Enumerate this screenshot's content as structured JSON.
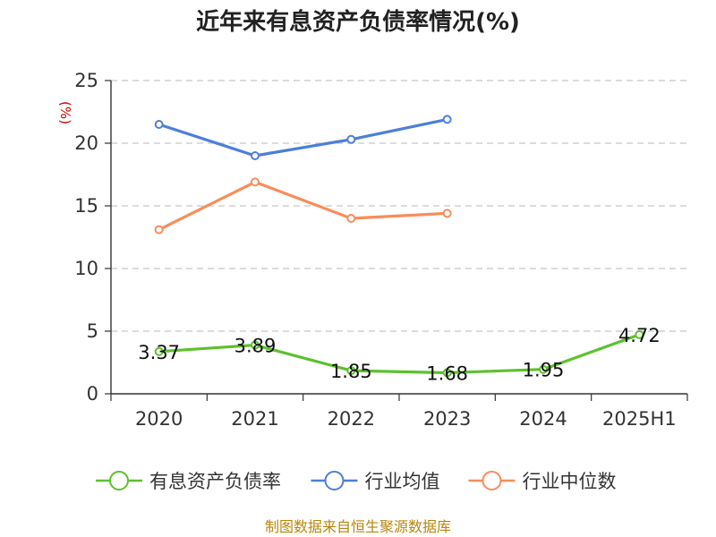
{
  "chart_data": {
    "type": "line",
    "title": "近年来有息资产负债率情况(%)",
    "unit_label": "(%)",
    "categories": [
      "2020",
      "2021",
      "2022",
      "2023",
      "2024",
      "2025H1"
    ],
    "y_ticks": [
      "0",
      "5",
      "10",
      "15",
      "20",
      "25"
    ],
    "ylim": [
      0,
      25
    ],
    "grid": true,
    "legend_position": "bottom",
    "series": [
      {
        "name": "有息资产负债率",
        "color": "#5cc12d",
        "values": [
          3.37,
          3.89,
          1.85,
          1.68,
          1.95,
          4.72
        ],
        "labels": [
          "3.37",
          "3.89",
          "1.85",
          "1.68",
          "1.95",
          "4.72"
        ]
      },
      {
        "name": "行业均值",
        "color": "#4c7fd8",
        "values": [
          21.5,
          19.0,
          20.3,
          21.9,
          null,
          null
        ]
      },
      {
        "name": "行业中位数",
        "color": "#f98c5a",
        "values": [
          13.1,
          16.9,
          14.0,
          14.4,
          null,
          null
        ]
      }
    ],
    "source": "制图数据来自恒生聚源数据库"
  }
}
